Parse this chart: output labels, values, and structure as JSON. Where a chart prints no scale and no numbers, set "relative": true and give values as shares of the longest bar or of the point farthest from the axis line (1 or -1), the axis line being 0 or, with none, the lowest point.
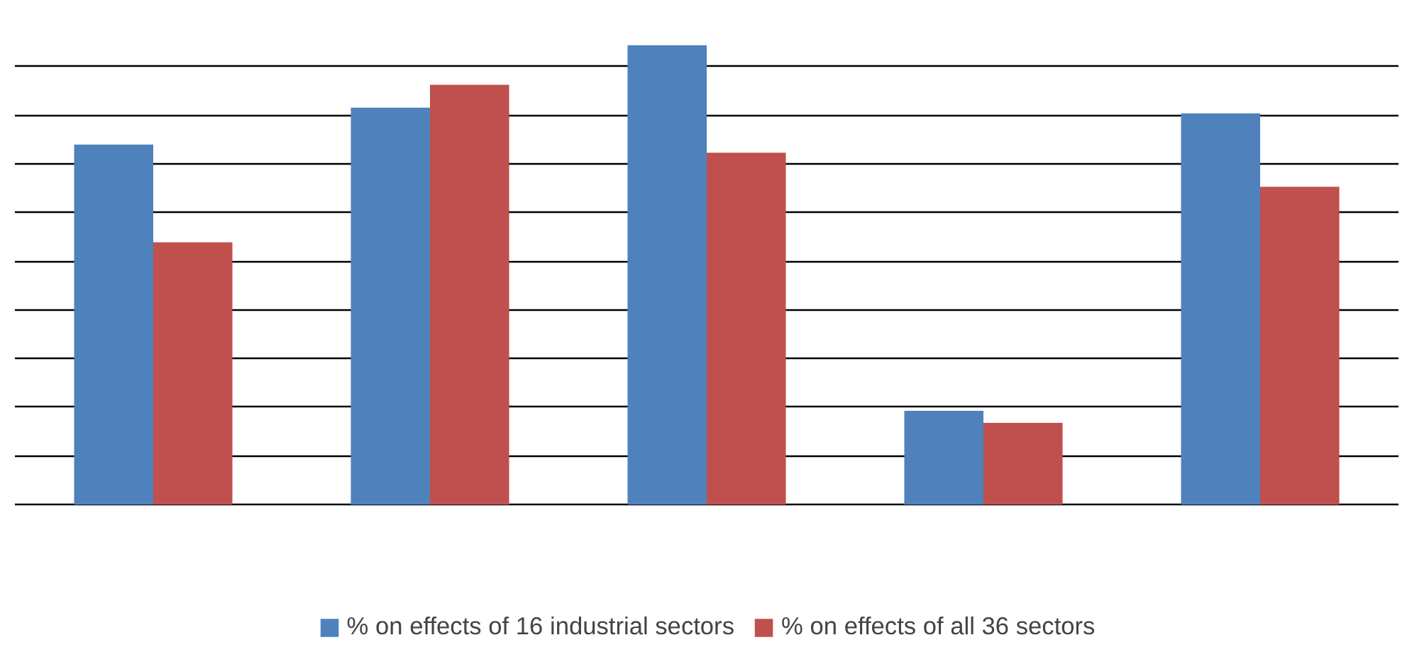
{
  "chart_data": {
    "type": "bar",
    "relative": true,
    "categories": [
      null,
      null,
      null,
      null,
      null
    ],
    "series": [
      {
        "name": "% on effects of 16 industrial sectors",
        "color": "#4f81bd",
        "values": [
          0.784,
          0.864,
          1.0,
          0.204,
          0.852
        ]
      },
      {
        "name": "% on effects of all 36 sectors",
        "color": "#c0504d",
        "values": [
          0.571,
          0.914,
          0.766,
          0.178,
          0.692
        ]
      }
    ],
    "grid": "y",
    "legend": "bottom"
  }
}
